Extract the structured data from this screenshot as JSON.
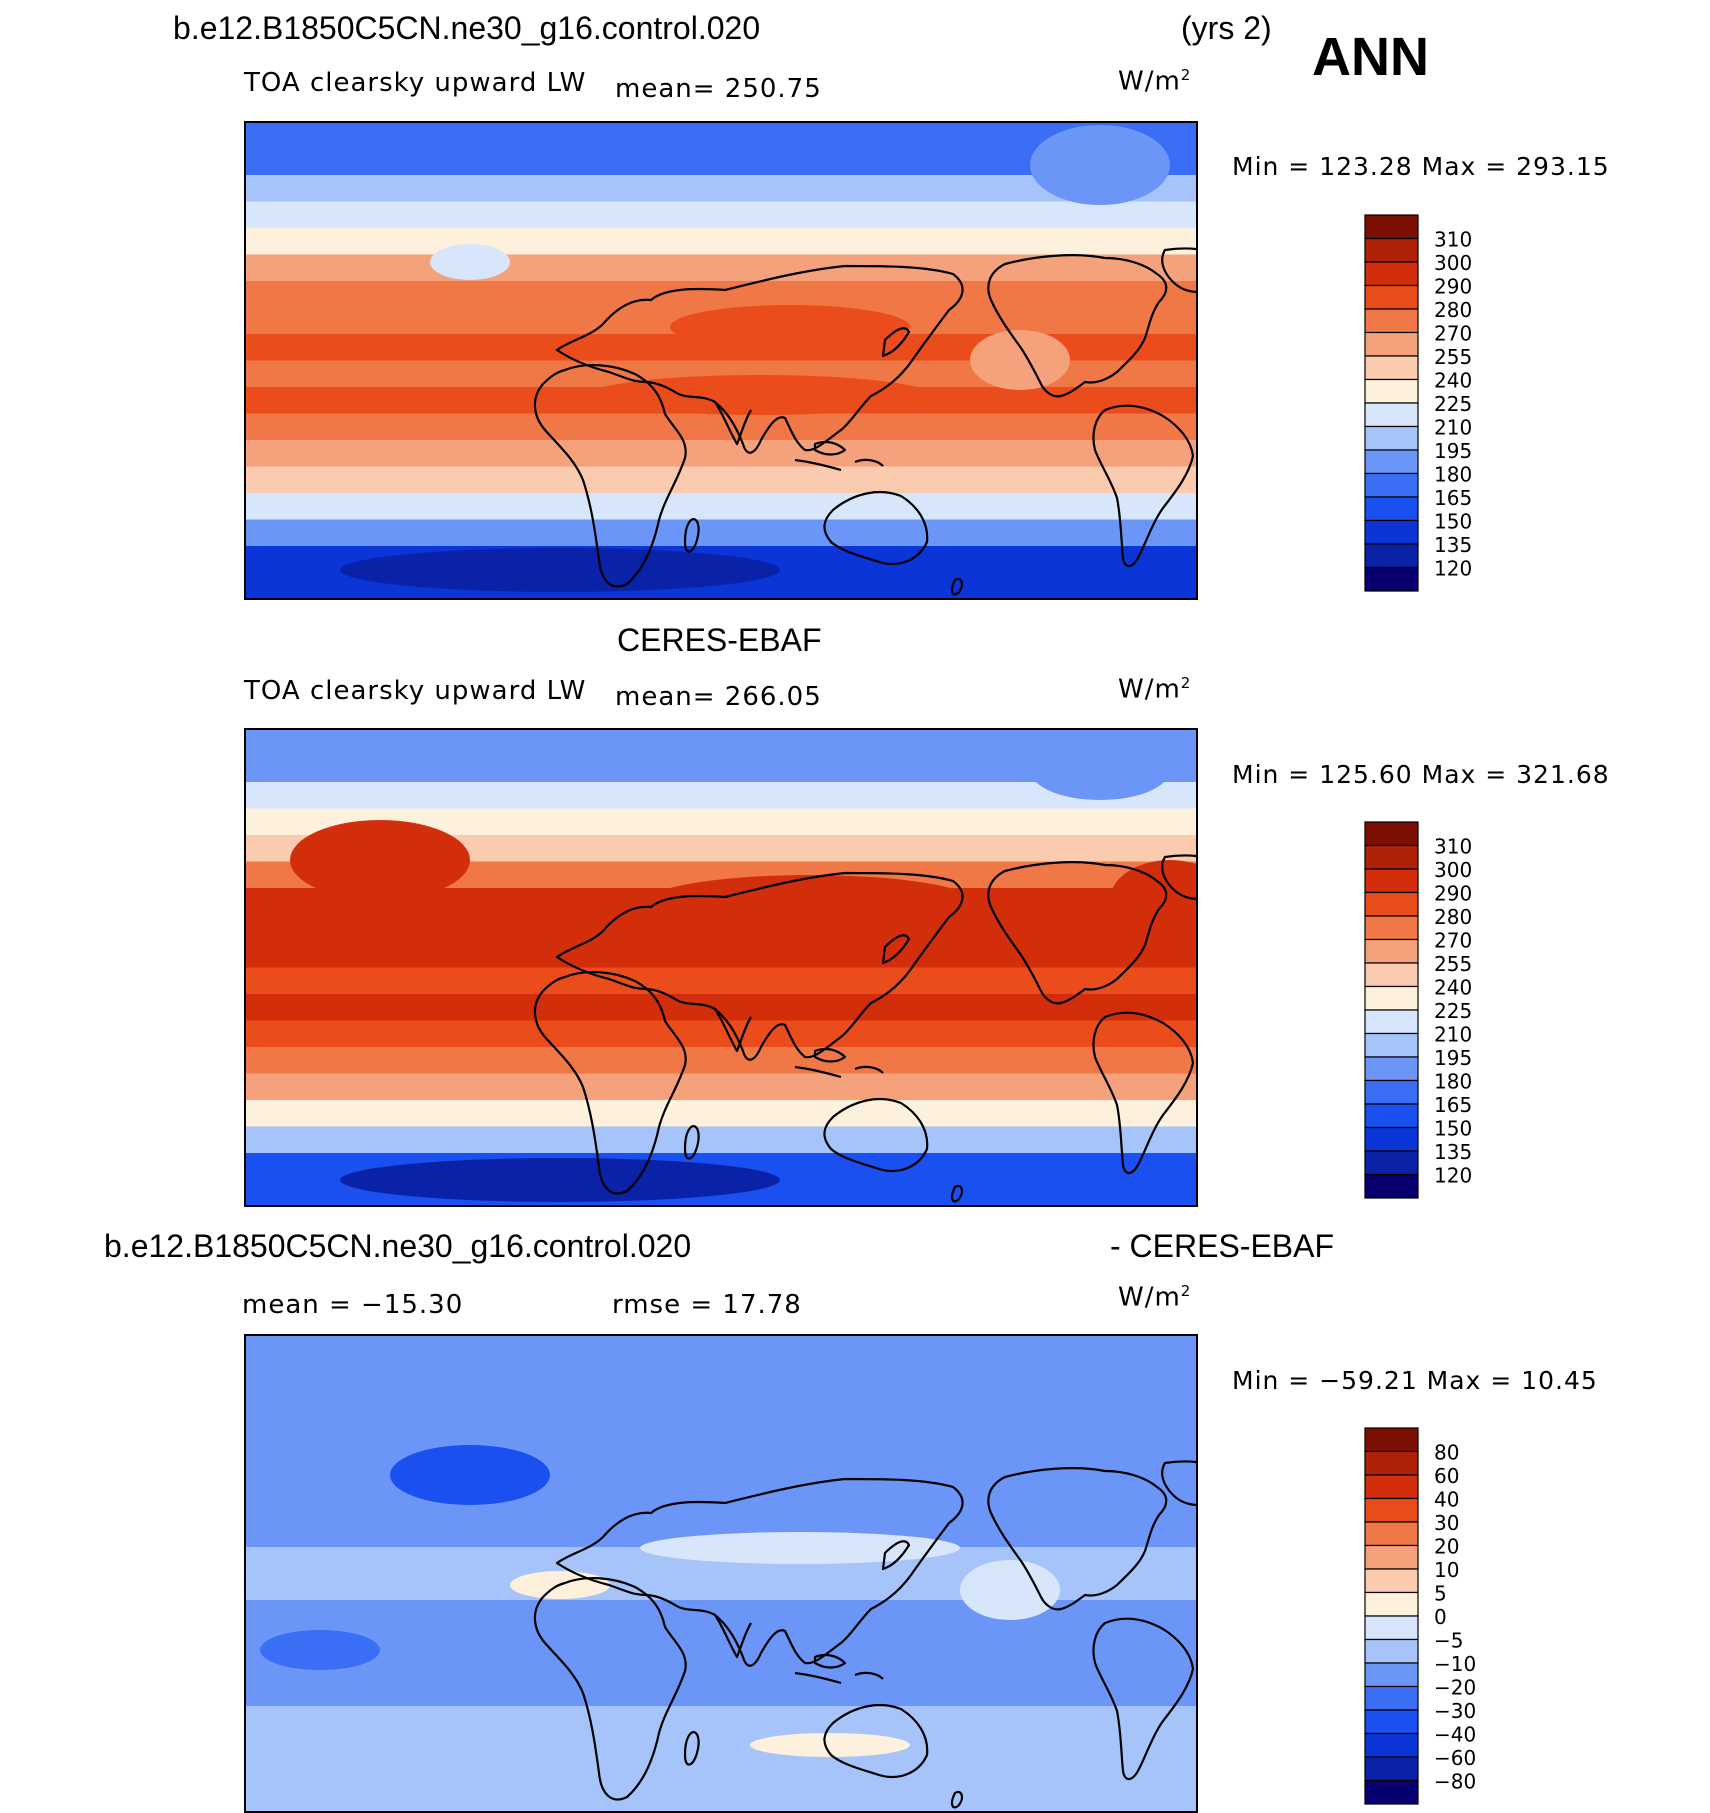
{
  "header": {
    "case_name": "b.e12.B1850C5CN.ne30_g16.control.020",
    "years": "(yrs 2)",
    "season": "ANN"
  },
  "panels": [
    {
      "title": "",
      "variable": "TOA clearsky upward LW",
      "stat": "mean=  250.75",
      "units_base": "W/m",
      "units_exp": "2",
      "minmax": "Min  =  123.28  Max  =  293.15",
      "levels": [
        "310",
        "300",
        "290",
        "280",
        "270",
        "255",
        "240",
        "225",
        "210",
        "195",
        "180",
        "165",
        "150",
        "135",
        "120"
      ]
    },
    {
      "title": "CERES-EBAF",
      "variable": "TOA clearsky upward LW",
      "stat": "mean=  266.05",
      "units_base": "W/m",
      "units_exp": "2",
      "minmax": "Min  =  125.60  Max  =  321.68",
      "levels": [
        "310",
        "300",
        "290",
        "280",
        "270",
        "255",
        "240",
        "225",
        "210",
        "195",
        "180",
        "165",
        "150",
        "135",
        "120"
      ]
    },
    {
      "title_left": "b.e12.B1850C5CN.ne30_g16.control.020",
      "title_right": "- CERES-EBAF",
      "stat_mean": "mean  =  −15.30",
      "stat_rmse": "rmse  =    17.78",
      "units_base": "W/m",
      "units_exp": "2",
      "minmax": "Min  =  −59.21  Max  =    10.45",
      "levels": [
        "80",
        "60",
        "40",
        "30",
        "20",
        "10",
        "5",
        "0",
        "−5",
        "−10",
        "−20",
        "−30",
        "−40",
        "−60",
        "−80"
      ]
    }
  ],
  "chart_data": [
    {
      "type": "heatmap",
      "title": "b.e12.B1850C5CN.ne30_g16.control.020 TOA clearsky upward LW (ANN)",
      "units": "W/m2",
      "mean": 250.75,
      "min": 123.28,
      "max": 293.15,
      "contour_levels": [
        120,
        135,
        150,
        165,
        180,
        195,
        210,
        225,
        240,
        255,
        270,
        280,
        290,
        300,
        310
      ],
      "colorbar_colors": [
        "#08006f",
        "#0a22a8",
        "#0b35d6",
        "#1a4ff0",
        "#3a6ff5",
        "#6b96f7",
        "#a6c4fa",
        "#d8e6fb",
        "#fdf0dc",
        "#fbcbb0",
        "#f5a27c",
        "#f07846",
        "#ea4d1b",
        "#d22e0b",
        "#b0210a",
        "#7e0f05"
      ],
      "zonal_band_levels_deg": {
        "lat": [
          90,
          70,
          60,
          50,
          40,
          30,
          20,
          10,
          0,
          -10,
          -20,
          -30,
          -40,
          -50,
          -60,
          -70,
          -90
        ],
        "value_level": [
          165,
          195,
          210,
          225,
          255,
          270,
          270,
          280,
          270,
          280,
          270,
          255,
          240,
          210,
          180,
          135,
          135
        ]
      }
    },
    {
      "type": "heatmap",
      "title": "CERES-EBAF TOA clearsky upward LW (ANN)",
      "units": "W/m2",
      "mean": 266.05,
      "min": 125.6,
      "max": 321.68,
      "contour_levels": [
        120,
        135,
        150,
        165,
        180,
        195,
        210,
        225,
        240,
        255,
        270,
        280,
        290,
        300,
        310
      ],
      "zonal_band_levels_deg": {
        "lat": [
          90,
          70,
          60,
          50,
          40,
          30,
          20,
          10,
          0,
          -10,
          -20,
          -30,
          -40,
          -50,
          -60,
          -70,
          -90
        ],
        "value_level": [
          180,
          210,
          225,
          240,
          270,
          290,
          290,
          290,
          280,
          290,
          280,
          270,
          255,
          225,
          195,
          150,
          135
        ]
      }
    },
    {
      "type": "heatmap",
      "title": "b.e12.B1850C5CN.ne30_g16.control.020 - CERES-EBAF",
      "units": "W/m2",
      "mean": -15.3,
      "rmse": 17.78,
      "min": -59.21,
      "max": 10.45,
      "contour_levels": [
        -80,
        -60,
        -40,
        -30,
        -20,
        -10,
        -5,
        0,
        5,
        10,
        20,
        30,
        40,
        60,
        80
      ],
      "zonal_band_levels_deg": {
        "lat": [
          90,
          70,
          60,
          50,
          40,
          30,
          20,
          10,
          0,
          -10,
          -20,
          -30,
          -40,
          -50,
          -60,
          -70,
          -90
        ],
        "value_level": [
          -20,
          -20,
          -20,
          -20,
          -20,
          -20,
          -20,
          -10,
          -10,
          -20,
          -20,
          -20,
          -20,
          -10,
          -10,
          -10,
          -20
        ]
      }
    }
  ],
  "colors": {
    "levels_seq": [
      "#7e0f05",
      "#b0210a",
      "#d22e0b",
      "#ea4d1b",
      "#f07846",
      "#f5a27c",
      "#fbcbb0",
      "#fdf0dc",
      "#d8e6fb",
      "#a6c4fa",
      "#6b96f7",
      "#3a6ff5",
      "#1a4ff0",
      "#0b35d6",
      "#0a22a8",
      "#08006f"
    ]
  }
}
